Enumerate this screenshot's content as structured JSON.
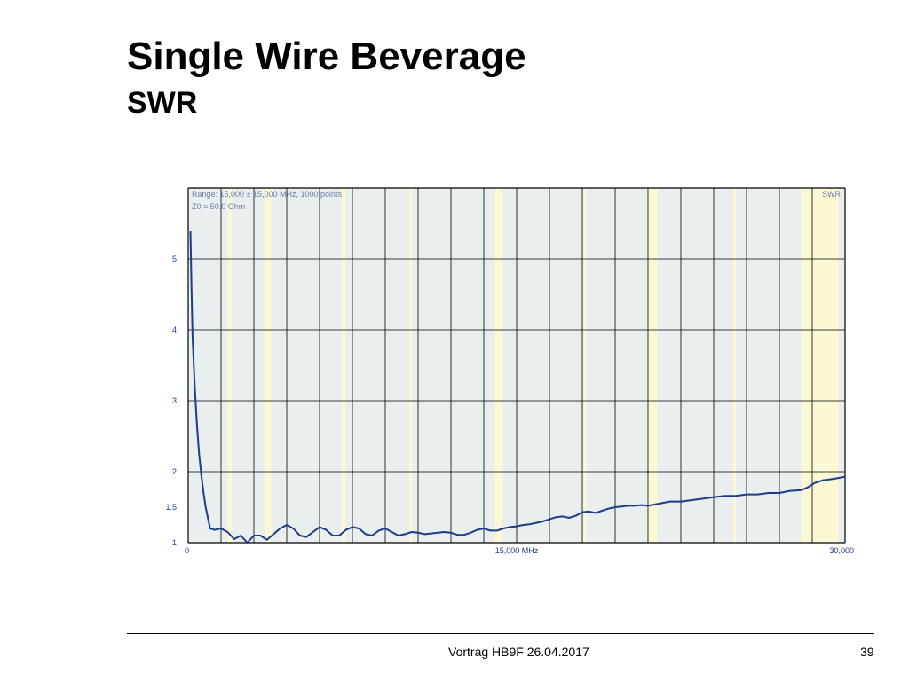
{
  "slide": {
    "title": "Single Wire Beverage",
    "subtitle": "SWR",
    "footer": "Vortrag HB9F 26.04.2017",
    "page_number": "39"
  },
  "chart_data": {
    "type": "line",
    "info_line1": "Range: 15,000 ± 15,000 MHz, 1000 points",
    "info_line2": "Z0 = 50.0 Ohm",
    "series": [
      {
        "name": "SWR",
        "color": "#1f3b8c",
        "x": [
          0.1,
          0.15,
          0.2,
          0.3,
          0.4,
          0.5,
          0.6,
          0.7,
          0.8,
          1.0,
          1.2,
          1.5,
          1.8,
          2.1,
          2.4,
          2.7,
          3.0,
          3.3,
          3.6,
          3.9,
          4.2,
          4.5,
          4.8,
          5.1,
          5.4,
          5.7,
          6.0,
          6.3,
          6.6,
          6.9,
          7.2,
          7.5,
          7.8,
          8.1,
          8.4,
          8.7,
          9.0,
          9.3,
          9.6,
          9.9,
          10.2,
          10.5,
          10.8,
          11.1,
          11.4,
          11.7,
          12.0,
          12.3,
          12.6,
          12.9,
          13.2,
          13.5,
          13.8,
          14.1,
          14.4,
          14.7,
          15.0,
          15.3,
          15.6,
          15.9,
          16.2,
          16.5,
          16.8,
          17.1,
          17.4,
          17.7,
          18.0,
          18.3,
          18.6,
          18.9,
          19.2,
          19.5,
          19.8,
          20.1,
          20.4,
          20.7,
          21.0,
          21.5,
          22.0,
          22.5,
          23.0,
          23.5,
          24.0,
          24.5,
          25.0,
          25.5,
          26.0,
          26.5,
          27.0,
          27.5,
          28.0,
          28.3,
          28.6,
          29.0,
          29.5,
          30.0
        ],
        "values": [
          5.4,
          4.6,
          3.9,
          3.2,
          2.65,
          2.25,
          1.95,
          1.7,
          1.5,
          1.2,
          1.18,
          1.2,
          1.15,
          1.05,
          1.1,
          1.0,
          1.1,
          1.1,
          1.04,
          1.12,
          1.2,
          1.25,
          1.2,
          1.1,
          1.08,
          1.15,
          1.22,
          1.18,
          1.1,
          1.1,
          1.18,
          1.22,
          1.2,
          1.12,
          1.1,
          1.17,
          1.2,
          1.15,
          1.1,
          1.12,
          1.15,
          1.14,
          1.12,
          1.13,
          1.14,
          1.15,
          1.14,
          1.11,
          1.11,
          1.14,
          1.18,
          1.2,
          1.17,
          1.17,
          1.2,
          1.22,
          1.23,
          1.25,
          1.26,
          1.28,
          1.3,
          1.33,
          1.36,
          1.37,
          1.35,
          1.38,
          1.43,
          1.44,
          1.42,
          1.45,
          1.48,
          1.5,
          1.51,
          1.52,
          1.52,
          1.53,
          1.52,
          1.55,
          1.58,
          1.58,
          1.6,
          1.62,
          1.64,
          1.66,
          1.66,
          1.68,
          1.68,
          1.7,
          1.7,
          1.73,
          1.74,
          1.78,
          1.84,
          1.88,
          1.9,
          1.93
        ]
      }
    ],
    "x_ticks": [
      "0",
      "15,000 MHz",
      "30,000"
    ],
    "x_tick_values": [
      0,
      15,
      30
    ],
    "y_ticks": [
      "5",
      "4",
      "3",
      "2",
      "1.5",
      "1"
    ],
    "y_tick_values": [
      5,
      4,
      3,
      2,
      1.5,
      1
    ],
    "legend": "SWR",
    "xlim": [
      0,
      30
    ],
    "ylim": [
      1,
      6
    ],
    "grid": true,
    "bands_mhz": [
      [
        1.8,
        2.0
      ],
      [
        3.5,
        3.8
      ],
      [
        7.0,
        7.2
      ],
      [
        10.1,
        10.15
      ],
      [
        14.0,
        14.35
      ],
      [
        18.07,
        18.17
      ],
      [
        21.0,
        21.45
      ],
      [
        24.89,
        24.99
      ],
      [
        28.0,
        29.7
      ]
    ],
    "band_color": "#fbf8d4",
    "plot_bg": "#e9eeee",
    "grid_color": "#000000"
  }
}
